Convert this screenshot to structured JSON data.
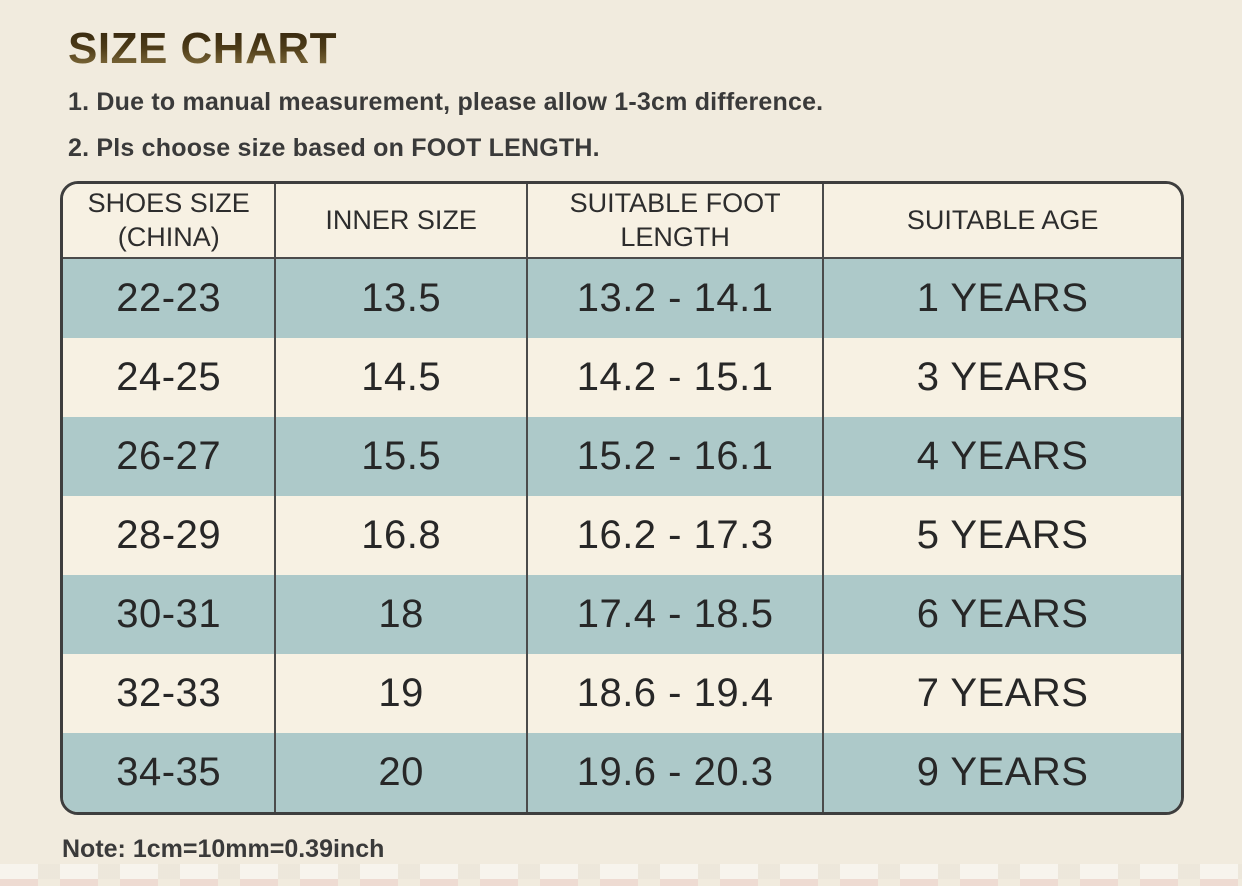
{
  "header": {
    "title": "SIZE CHART",
    "notes": [
      "1. Due to manual measurement, please allow 1-3cm difference.",
      "2. Pls choose size based on FOOT LENGTH."
    ]
  },
  "table": {
    "headers": [
      {
        "label": "SHOES SIZE",
        "sub": "(CHINA)"
      },
      {
        "label": "INNER SIZE",
        "sub": ""
      },
      {
        "label": "SUITABLE FOOT LENGTH",
        "sub": ""
      },
      {
        "label": "SUITABLE AGE",
        "sub": ""
      }
    ]
  },
  "chart_data": {
    "type": "table",
    "title": "SIZE CHART",
    "columns": [
      "SHOES SIZE (CHINA)",
      "INNER SIZE",
      "SUITABLE FOOT LENGTH",
      "SUITABLE AGE"
    ],
    "rows": [
      [
        "22-23",
        "13.5",
        "13.2 - 14.1",
        "1 YEARS"
      ],
      [
        "24-25",
        "14.5",
        "14.2 - 15.1",
        "3 YEARS"
      ],
      [
        "26-27",
        "15.5",
        "15.2 - 16.1",
        "4 YEARS"
      ],
      [
        "28-29",
        "16.8",
        "16.2 - 17.3",
        "5 YEARS"
      ],
      [
        "30-31",
        "18",
        "17.4 - 18.5",
        "6 YEARS"
      ],
      [
        "32-33",
        "19",
        "18.6 - 19.4",
        "7 YEARS"
      ],
      [
        "34-35",
        "20",
        "19.6 - 20.3",
        "9 YEARS"
      ]
    ]
  },
  "footnote": "Note: 1cm=10mm=0.39inch",
  "colors": {
    "page_background": "#f1ebde",
    "cell_background": "#f7f1e3",
    "row_stripe_teal": "#adc9c9",
    "border": "#454545",
    "title_gradient_top": "#32240d",
    "title_gradient_bottom": "#8d7845",
    "text": "#2d2d2d"
  }
}
